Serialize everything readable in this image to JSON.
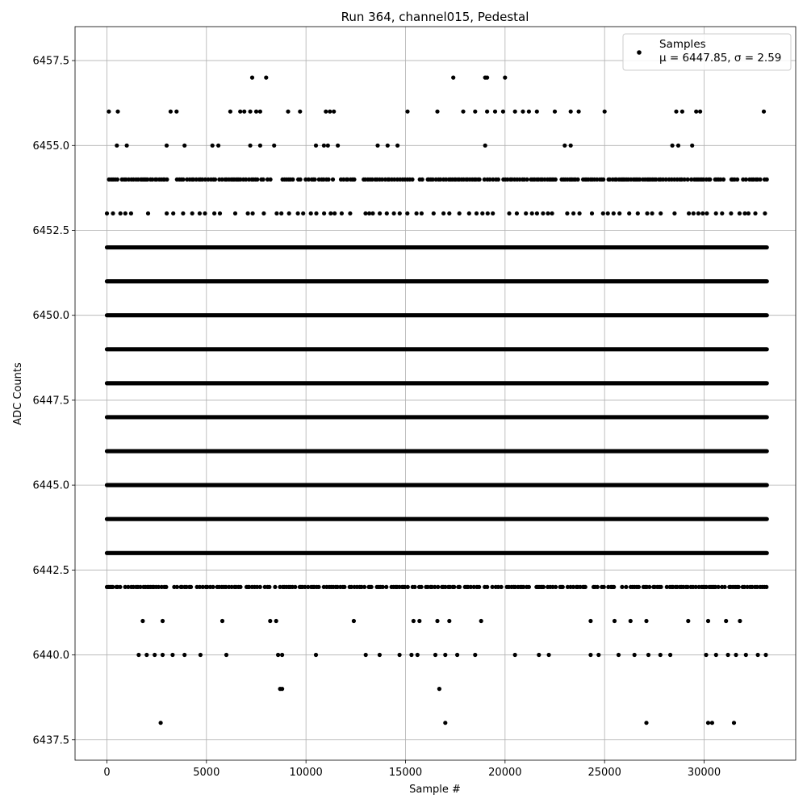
{
  "chart_data": {
    "type": "scatter",
    "title": "Run 364, channel015, Pedestal",
    "xlabel": "Sample #",
    "ylabel": "ADC Counts",
    "xlim": [
      -1600,
      34600
    ],
    "ylim": [
      6436.9,
      6458.5
    ],
    "x_ticks": [
      0,
      5000,
      10000,
      15000,
      20000,
      25000,
      30000
    ],
    "x_tick_labels": [
      "0",
      "5000",
      "10000",
      "15000",
      "20000",
      "25000",
      "30000"
    ],
    "y_ticks": [
      6437.5,
      6440.0,
      6442.5,
      6445.0,
      6447.5,
      6450.0,
      6452.5,
      6455.0,
      6457.5
    ],
    "y_tick_labels": [
      "6437.5",
      "6440.0",
      "6442.5",
      "6445.0",
      "6447.5",
      "6450.0",
      "6452.5",
      "6455.0",
      "6457.5"
    ],
    "grid": true,
    "legend_position": "top-right",
    "series": [
      {
        "name": "Samples",
        "legend_line2": "μ = 6447.85, σ = 2.59",
        "color": "#000000",
        "sample_range": [
          0,
          33150
        ],
        "levels": [
          {
            "y": 6452,
            "density": "dense"
          },
          {
            "y": 6451,
            "density": "dense"
          },
          {
            "y": 6450,
            "density": "dense"
          },
          {
            "y": 6449,
            "density": "dense"
          },
          {
            "y": 6448,
            "density": "dense"
          },
          {
            "y": 6447,
            "density": "dense"
          },
          {
            "y": 6446,
            "density": "dense"
          },
          {
            "y": 6445,
            "density": "dense"
          },
          {
            "y": 6444,
            "density": "dense"
          },
          {
            "y": 6443,
            "density": "dense"
          },
          {
            "y": 6442,
            "density": "moderate"
          },
          {
            "y": 6453,
            "density": "sparse"
          },
          {
            "y": 6454,
            "density": "moderate"
          }
        ],
        "points": [
          [
            100,
            6456
          ],
          [
            550,
            6456
          ],
          [
            3200,
            6456
          ],
          [
            3500,
            6456
          ],
          [
            6200,
            6456
          ],
          [
            6700,
            6456
          ],
          [
            6900,
            6456
          ],
          [
            7200,
            6456
          ],
          [
            7500,
            6456
          ],
          [
            7700,
            6456
          ],
          [
            9100,
            6456
          ],
          [
            9700,
            6456
          ],
          [
            11000,
            6456
          ],
          [
            11200,
            6456
          ],
          [
            11400,
            6456
          ],
          [
            15100,
            6456
          ],
          [
            16600,
            6456
          ],
          [
            17900,
            6456
          ],
          [
            18500,
            6456
          ],
          [
            19100,
            6456
          ],
          [
            19500,
            6456
          ],
          [
            19900,
            6456
          ],
          [
            20500,
            6456
          ],
          [
            20900,
            6456
          ],
          [
            21200,
            6456
          ],
          [
            21600,
            6456
          ],
          [
            22500,
            6456
          ],
          [
            23300,
            6456
          ],
          [
            23700,
            6456
          ],
          [
            25000,
            6456
          ],
          [
            28600,
            6456
          ],
          [
            28900,
            6456
          ],
          [
            29600,
            6456
          ],
          [
            29800,
            6456
          ],
          [
            33000,
            6456
          ],
          [
            7300,
            6457
          ],
          [
            8000,
            6457
          ],
          [
            17400,
            6457
          ],
          [
            19000,
            6457
          ],
          [
            19100,
            6457
          ],
          [
            20000,
            6457
          ],
          [
            500,
            6455
          ],
          [
            1000,
            6455
          ],
          [
            3000,
            6455
          ],
          [
            3900,
            6455
          ],
          [
            5300,
            6455
          ],
          [
            5600,
            6455
          ],
          [
            7200,
            6455
          ],
          [
            7700,
            6455
          ],
          [
            8400,
            6455
          ],
          [
            10500,
            6455
          ],
          [
            10900,
            6455
          ],
          [
            11100,
            6455
          ],
          [
            11600,
            6455
          ],
          [
            13600,
            6455
          ],
          [
            14100,
            6455
          ],
          [
            14600,
            6455
          ],
          [
            19000,
            6455
          ],
          [
            23000,
            6455
          ],
          [
            23300,
            6455
          ],
          [
            28400,
            6455
          ],
          [
            28700,
            6455
          ],
          [
            29400,
            6455
          ],
          [
            1800,
            6441
          ],
          [
            2800,
            6441
          ],
          [
            5800,
            6441
          ],
          [
            8200,
            6441
          ],
          [
            8500,
            6441
          ],
          [
            12400,
            6441
          ],
          [
            15400,
            6441
          ],
          [
            15700,
            6441
          ],
          [
            16600,
            6441
          ],
          [
            17200,
            6441
          ],
          [
            18800,
            6441
          ],
          [
            24300,
            6441
          ],
          [
            25500,
            6441
          ],
          [
            26300,
            6441
          ],
          [
            27100,
            6441
          ],
          [
            29200,
            6441
          ],
          [
            30200,
            6441
          ],
          [
            31100,
            6441
          ],
          [
            31800,
            6441
          ],
          [
            1600,
            6440
          ],
          [
            2000,
            6440
          ],
          [
            2400,
            6440
          ],
          [
            2800,
            6440
          ],
          [
            3300,
            6440
          ],
          [
            3900,
            6440
          ],
          [
            4700,
            6440
          ],
          [
            6000,
            6440
          ],
          [
            8600,
            6440
          ],
          [
            8800,
            6440
          ],
          [
            10500,
            6440
          ],
          [
            13000,
            6440
          ],
          [
            13700,
            6440
          ],
          [
            14700,
            6440
          ],
          [
            15300,
            6440
          ],
          [
            15600,
            6440
          ],
          [
            16500,
            6440
          ],
          [
            17000,
            6440
          ],
          [
            17600,
            6440
          ],
          [
            18500,
            6440
          ],
          [
            20500,
            6440
          ],
          [
            21700,
            6440
          ],
          [
            22200,
            6440
          ],
          [
            24300,
            6440
          ],
          [
            24700,
            6440
          ],
          [
            25700,
            6440
          ],
          [
            26500,
            6440
          ],
          [
            27200,
            6440
          ],
          [
            27800,
            6440
          ],
          [
            28300,
            6440
          ],
          [
            30100,
            6440
          ],
          [
            30600,
            6440
          ],
          [
            31200,
            6440
          ],
          [
            31600,
            6440
          ],
          [
            32100,
            6440
          ],
          [
            32700,
            6440
          ],
          [
            33100,
            6440
          ],
          [
            8700,
            6439
          ],
          [
            8800,
            6439
          ],
          [
            16700,
            6439
          ],
          [
            2700,
            6438
          ],
          [
            17000,
            6438
          ],
          [
            27100,
            6438
          ],
          [
            30200,
            6438
          ],
          [
            30400,
            6438
          ],
          [
            31500,
            6438
          ]
        ]
      }
    ]
  }
}
